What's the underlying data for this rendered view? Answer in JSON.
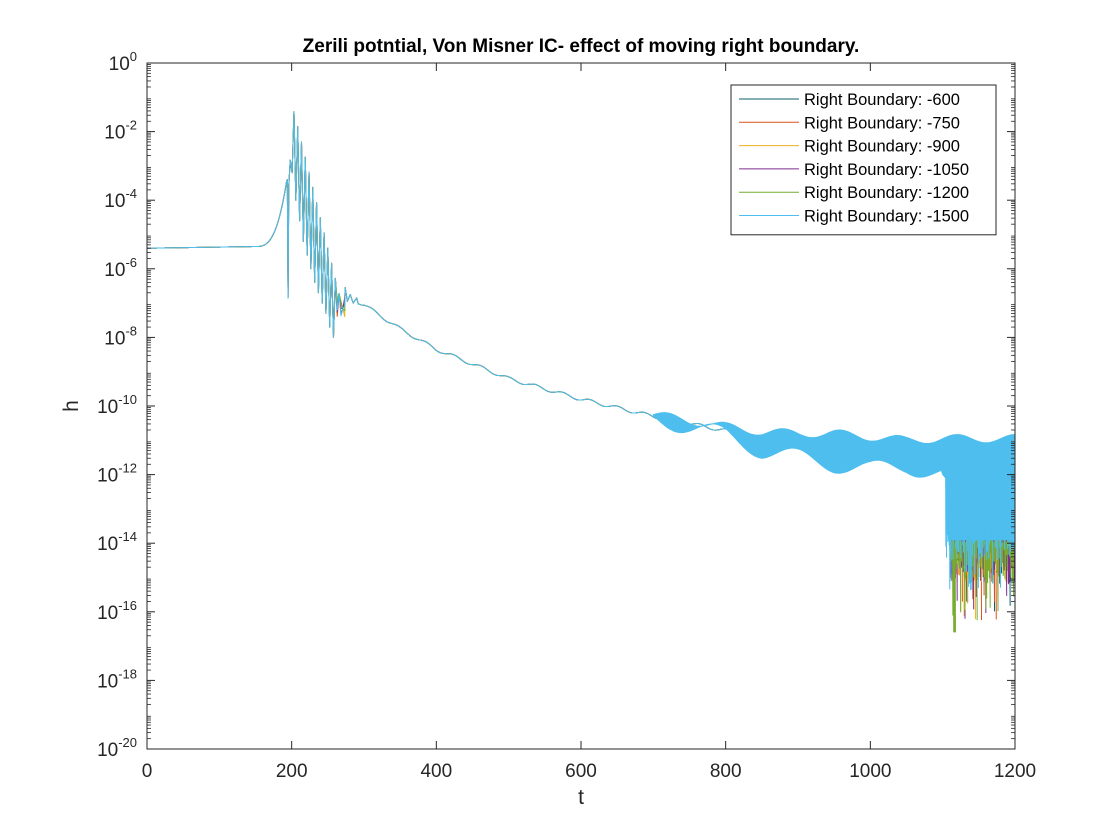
{
  "chart_data": {
    "type": "line",
    "title": "Zerili potntial, Von Misner IC- effect of moving right boundary.",
    "xlabel": "t",
    "ylabel": "h",
    "xlim": [
      0,
      1200
    ],
    "ylim": [
      1e-20,
      1
    ],
    "yscale": "log",
    "grid": false,
    "legend_position": "top-right",
    "xticks": [
      0,
      200,
      400,
      600,
      800,
      1000,
      1200
    ],
    "xtick_labels": [
      "0",
      "200",
      "400",
      "600",
      "800",
      "1000",
      "1200"
    ],
    "yticks": [
      -20,
      -18,
      -16,
      -14,
      -12,
      -10,
      -8,
      -6,
      -4,
      -2,
      0
    ],
    "ytick_labels": [
      {
        "base": "10",
        "exp": "-20"
      },
      {
        "base": "10",
        "exp": "-18"
      },
      {
        "base": "10",
        "exp": "-16"
      },
      {
        "base": "10",
        "exp": "-14"
      },
      {
        "base": "10",
        "exp": "-12"
      },
      {
        "base": "10",
        "exp": "-10"
      },
      {
        "base": "10",
        "exp": "-8"
      },
      {
        "base": "10",
        "exp": "-6"
      },
      {
        "base": "10",
        "exp": "-4"
      },
      {
        "base": "10",
        "exp": "-2"
      },
      {
        "base": "10",
        "exp": "0"
      }
    ],
    "series": [
      {
        "name": "Right Boundary: -600",
        "color": "#0b5f6f"
      },
      {
        "name": "Right Boundary: -750",
        "color": "#d95319"
      },
      {
        "name": "Right Boundary: -900",
        "color": "#edb120"
      },
      {
        "name": "Right Boundary: -1050",
        "color": "#7e2f8e"
      },
      {
        "name": "Right Boundary: -1200",
        "color": "#77ac30"
      },
      {
        "name": "Right Boundary: -1500",
        "color": "#4dbeee"
      }
    ],
    "common_curve": {
      "description_points_t": [
        0,
        150,
        180,
        192,
        196,
        203,
        210,
        222,
        240,
        255,
        270,
        300,
        400,
        500,
        600,
        700,
        800
      ],
      "log10_h": [
        -5.4,
        -5.35,
        -4.9,
        -3.6,
        -6.9,
        -1.4,
        -1.5,
        -2.5,
        -4.0,
        -5.5,
        -6.5,
        -7.0,
        -8.4,
        -9.2,
        -9.8,
        -10.3,
        -10.7
      ]
    },
    "band": {
      "t": [
        700,
        800,
        850,
        900,
        950,
        1000,
        1050,
        1100,
        1200
      ],
      "log10_upper": [
        -10.25,
        -10.6,
        -10.75,
        -10.8,
        -10.8,
        -10.9,
        -11.0,
        -10.95,
        -10.95
      ],
      "log10_lower": [
        -10.35,
        -10.85,
        -11.3,
        -11.5,
        -11.7,
        -11.85,
        -11.75,
        -12.0,
        -12.0
      ]
    },
    "noise_region": {
      "t_start": 1110,
      "t_end": 1200,
      "log10_upper": -11.0,
      "log10_deep_lower": -14.2,
      "min_spike_log10": -16.6,
      "min_spike_t": 1116
    }
  }
}
